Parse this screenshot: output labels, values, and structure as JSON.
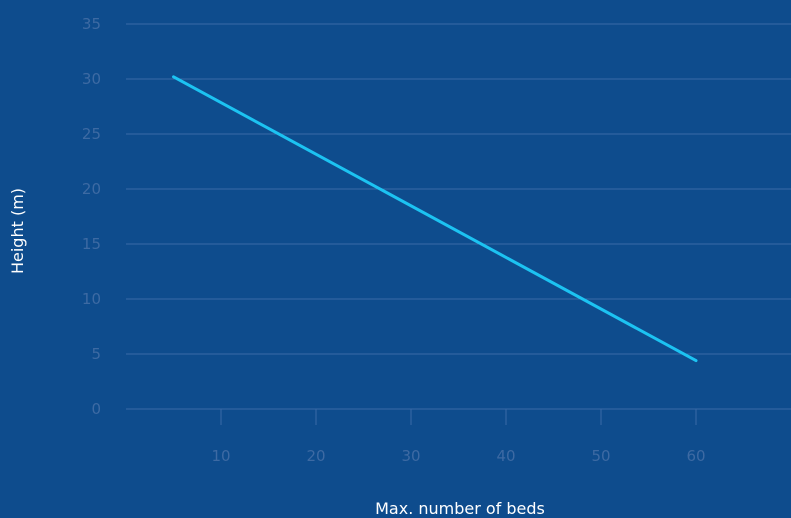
{
  "chart_data": {
    "type": "line",
    "title": "",
    "xlabel": "Max. number of beds",
    "ylabel": "Height (m)",
    "xlim": [
      0,
      70
    ],
    "ylim": [
      0,
      35
    ],
    "x_ticks": [
      10,
      20,
      30,
      40,
      50,
      60
    ],
    "y_ticks": [
      0,
      5,
      10,
      15,
      20,
      25,
      30,
      35
    ],
    "grid": "horizontal",
    "series": [
      {
        "x": [
          5,
          60
        ],
        "y": [
          30.2,
          4.4
        ],
        "color": "#1cc3f2"
      }
    ]
  },
  "colors": {
    "background": "#0e4c8d",
    "grid": "#3a6aa6",
    "tick_text": "#3d6aa3",
    "title_text": "#ffffff",
    "line": "#1cc3f2"
  }
}
